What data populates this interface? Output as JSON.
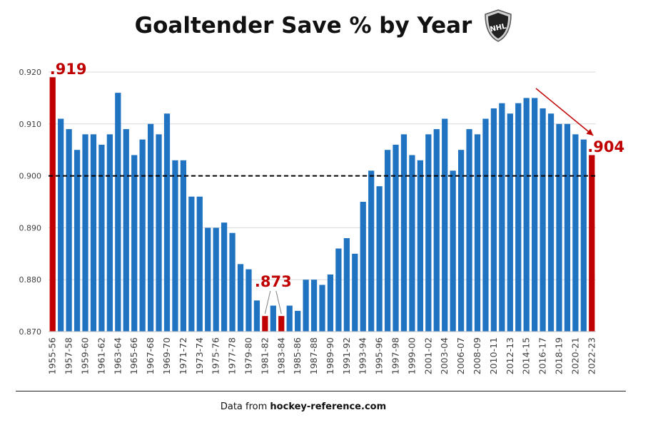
{
  "chart_data": {
    "type": "bar",
    "title": "Goaltender Save % by Year",
    "xlabel": "",
    "ylabel": "",
    "ylim": [
      0.87,
      0.92
    ],
    "yticks": [
      "0.870",
      "0.880",
      "0.890",
      "0.900",
      "0.910",
      "0.920"
    ],
    "grid": true,
    "reference_line": {
      "value": 0.9,
      "style": "dashed",
      "color": "#000000"
    },
    "colors": {
      "default": "#1f73c0",
      "highlight": "#c00000",
      "annotation": "#c00000"
    },
    "categories": [
      "1955-56",
      "1956-57",
      "1957-58",
      "1958-59",
      "1959-60",
      "1960-61",
      "1961-62",
      "1962-63",
      "1963-64",
      "1964-65",
      "1965-66",
      "1966-67",
      "1967-68",
      "1968-69",
      "1969-70",
      "1970-71",
      "1971-72",
      "1972-73",
      "1973-74",
      "1974-75",
      "1975-76",
      "1976-77",
      "1977-78",
      "1978-79",
      "1979-80",
      "1980-81",
      "1981-82",
      "1982-83",
      "1983-84",
      "1984-85",
      "1985-86",
      "1986-87",
      "1987-88",
      "1988-89",
      "1989-90",
      "1990-91",
      "1991-92",
      "1992-93",
      "1993-94",
      "1994-95",
      "1995-96",
      "1996-97",
      "1997-98",
      "1998-99",
      "1999-00",
      "2000-01",
      "2001-02",
      "2002-03",
      "2003-04",
      "2005-06",
      "2006-07",
      "2007-08",
      "2008-09",
      "2009-10",
      "2010-11",
      "2011-12",
      "2012-13",
      "2013-14",
      "2014-15",
      "2015-16",
      "2016-17",
      "2017-18",
      "2018-19",
      "2019-20",
      "2020-21",
      "2021-22",
      "2022-23"
    ],
    "tick_labels": [
      "1955-56",
      "1957-58",
      "1959-60",
      "1961-62",
      "1963-64",
      "1965-66",
      "1967-68",
      "1969-70",
      "1971-72",
      "1973-74",
      "1975-76",
      "1977-78",
      "1979-80",
      "1981-82",
      "1983-84",
      "1985-86",
      "1987-88",
      "1989-90",
      "1991-92",
      "1993-94",
      "1995-96",
      "1997-98",
      "1999-00",
      "2001-02",
      "2003-04",
      "2006-07",
      "2008-09",
      "2010-11",
      "2012-13",
      "2014-15",
      "2016-17",
      "2018-19",
      "2020-21",
      "2022-23"
    ],
    "values": [
      0.919,
      0.911,
      0.909,
      0.905,
      0.908,
      0.908,
      0.906,
      0.908,
      0.916,
      0.909,
      0.904,
      0.907,
      0.91,
      0.908,
      0.912,
      0.903,
      0.903,
      0.896,
      0.896,
      0.89,
      0.89,
      0.891,
      0.889,
      0.883,
      0.882,
      0.876,
      0.873,
      0.875,
      0.873,
      0.875,
      0.874,
      0.88,
      0.88,
      0.879,
      0.881,
      0.886,
      0.888,
      0.885,
      0.895,
      0.901,
      0.898,
      0.905,
      0.906,
      0.908,
      0.904,
      0.903,
      0.908,
      0.909,
      0.911,
      0.901,
      0.905,
      0.909,
      0.908,
      0.911,
      0.913,
      0.914,
      0.912,
      0.914,
      0.915,
      0.915,
      0.913,
      0.912,
      0.91,
      0.91,
      0.908,
      0.907,
      0.904
    ],
    "highlighted": [
      "1955-56",
      "1981-82",
      "1983-84",
      "2022-23"
    ],
    "annotations": [
      {
        "text": ".919",
        "target": "1955-56"
      },
      {
        "text": ".873",
        "target": [
          "1981-82",
          "1983-84"
        ]
      },
      {
        "text": ".904",
        "target": "2022-23"
      }
    ]
  },
  "logo": {
    "text": "NHL",
    "icon": "nhl-shield-logo"
  },
  "source": {
    "prefix": "Data from ",
    "site": "hockey-reference.com"
  }
}
